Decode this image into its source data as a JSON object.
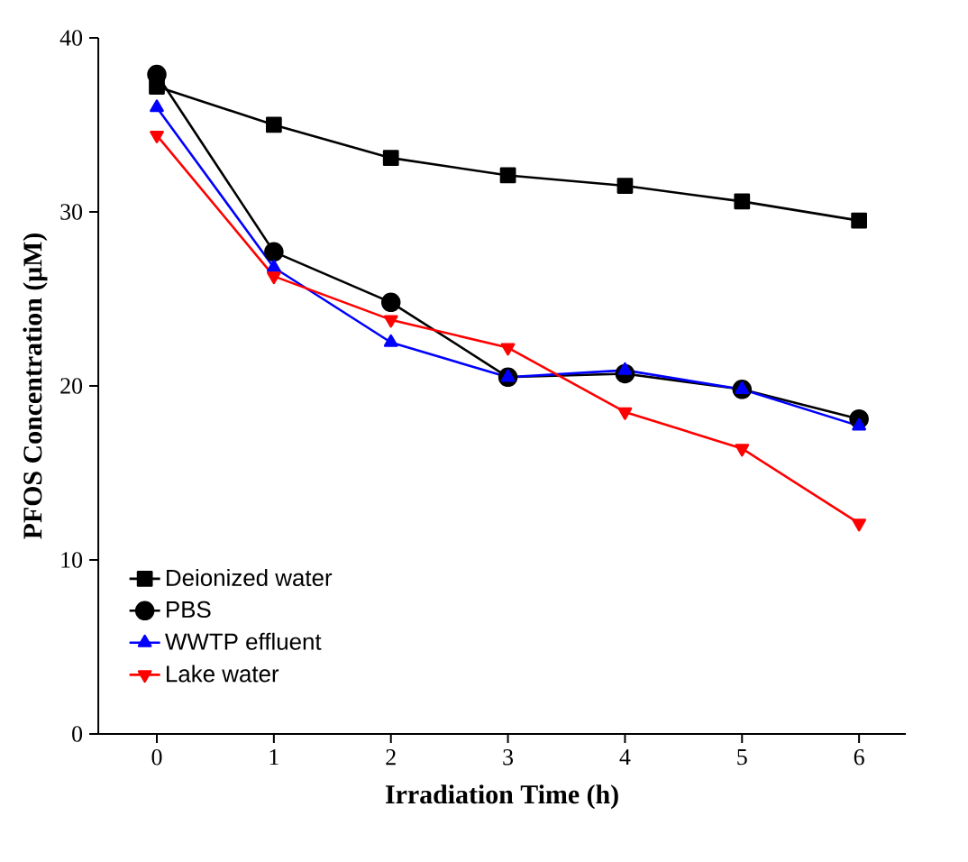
{
  "chart_data": {
    "type": "line",
    "xlabel": "Irradiation Time (h)",
    "ylabel": "PFOS Concentration (μM)",
    "x": [
      0,
      1,
      2,
      3,
      4,
      5,
      6
    ],
    "xlim": [
      -0.5,
      6.4
    ],
    "ylim": [
      0,
      40
    ],
    "xticks": [
      0,
      1,
      2,
      3,
      4,
      5,
      6
    ],
    "yticks": [
      0,
      10,
      20,
      30,
      40
    ],
    "legend": "bottom left",
    "grid": false,
    "line_style": "solid",
    "series": [
      {
        "name": "Deionized water",
        "color": "#000000",
        "marker": "square",
        "values": [
          37.2,
          35.0,
          33.1,
          32.1,
          31.5,
          30.6,
          29.5
        ]
      },
      {
        "name": "PBS",
        "color": "#000000",
        "marker": "circle",
        "values": [
          37.9,
          27.7,
          24.8,
          20.5,
          20.7,
          19.8,
          18.1
        ]
      },
      {
        "name": "WWTP effluent",
        "color": "#0000ff",
        "marker": "triangle",
        "values": [
          36.0,
          26.8,
          22.5,
          20.5,
          20.9,
          19.8,
          17.7
        ]
      },
      {
        "name": "Lake water",
        "color": "#ff0000",
        "marker": "triangle-down",
        "values": [
          34.4,
          26.3,
          23.8,
          22.2,
          18.5,
          16.4,
          12.1
        ]
      }
    ]
  }
}
